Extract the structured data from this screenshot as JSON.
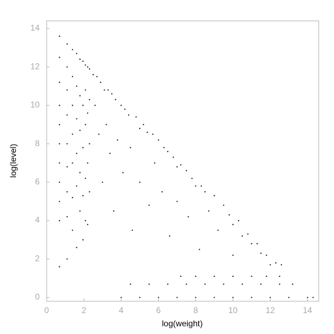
{
  "chart_data": {
    "type": "scatter",
    "x_label": "log(weight)",
    "y_label": "log(level)",
    "xlim": [
      0,
      14.6
    ],
    "ylim": [
      -0.2,
      14.4
    ],
    "xticks": [
      0,
      2,
      4,
      6,
      8,
      10,
      12,
      14
    ],
    "yticks": [
      0,
      2,
      4,
      6,
      8,
      10,
      12,
      14
    ],
    "grid": false,
    "color": "#000000",
    "x": [
      0.69,
      0.69,
      0.69,
      0.69,
      0.69,
      0.69,
      0.69,
      0.69,
      0.69,
      0.69,
      0.69,
      1.1,
      1.1,
      1.1,
      1.1,
      1.1,
      1.1,
      1.1,
      1.1,
      1.1,
      1.39,
      1.39,
      1.39,
      1.39,
      1.39,
      1.39,
      1.39,
      1.61,
      1.61,
      1.61,
      1.61,
      1.61,
      1.61,
      1.79,
      1.79,
      1.79,
      1.79,
      1.79,
      1.95,
      1.95,
      1.95,
      1.95,
      1.95,
      2.08,
      2.08,
      2.08,
      2.08,
      2.08,
      2.2,
      2.2,
      2.2,
      2.2,
      2.3,
      2.3,
      2.3,
      2.3,
      2.5,
      2.6,
      2.7,
      2.8,
      2.9,
      3,
      3.1,
      3.2,
      3.3,
      3.4,
      3.5,
      3.6,
      3.7,
      3.8,
      4,
      4.1,
      4.2,
      4.4,
      4.5,
      4.6,
      4.8,
      5,
      5,
      5.2,
      5.4,
      5.5,
      5.7,
      5.8,
      6,
      6.2,
      6.3,
      6.5,
      6.6,
      6.8,
      7,
      7,
      7.2,
      7.5,
      7.6,
      7.8,
      8,
      8.2,
      8.3,
      8.5,
      8.7,
      9,
      9.2,
      9.5,
      9.8,
      10,
      10,
      10.3,
      10.5,
      10.8,
      11,
      11.3,
      11.5,
      11.8,
      12,
      12.3,
      12.6,
      7.2,
      8,
      9,
      10,
      11,
      11.8,
      12.5,
      4.5,
      5.5,
      6.5,
      7.5,
      8.5,
      9.5,
      10.5,
      11.5,
      12.5,
      13.2,
      4,
      5,
      6,
      7,
      8,
      9,
      10,
      11,
      12,
      13,
      14,
      14.3
    ],
    "y": [
      13.6,
      12.5,
      11.2,
      10,
      9,
      8,
      7,
      6,
      5,
      4,
      1.6,
      13.2,
      12,
      10.8,
      9.5,
      8,
      6.8,
      5.5,
      4.2,
      2,
      12.9,
      11.5,
      10,
      8.5,
      7,
      5.2,
      3.5,
      12.7,
      11,
      9.3,
      7.5,
      5.8,
      2.6,
      12.4,
      10.5,
      8.7,
      6.5,
      4.5,
      12.3,
      10,
      7.8,
      5.3,
      3,
      12.1,
      10.8,
      9,
      6.2,
      4,
      12,
      9.6,
      7,
      3.8,
      11.9,
      10.3,
      8,
      5.5,
      11.6,
      10,
      11.5,
      8.5,
      11.2,
      6,
      10.8,
      9,
      10.8,
      7.5,
      10.6,
      4.5,
      10.3,
      8.2,
      10,
      6.5,
      9.8,
      9.5,
      7.8,
      3.5,
      9.4,
      8.8,
      6,
      9,
      8.6,
      4.8,
      8.5,
      7,
      8.2,
      5.5,
      7.8,
      7.6,
      3.2,
      7.3,
      6.8,
      5,
      6.9,
      6.6,
      4.2,
      6.2,
      5.8,
      2.5,
      5.8,
      5.5,
      4.5,
      5.3,
      3.5,
      4.8,
      4.3,
      3.8,
      2.2,
      4,
      3.2,
      3.3,
      2.8,
      2.8,
      2.3,
      2.2,
      1.7,
      1.8,
      1.7,
      1.1,
      1.1,
      1.1,
      1.1,
      1.1,
      1.1,
      1.1,
      0.69,
      0.69,
      0.69,
      0.69,
      0.69,
      0.69,
      0.69,
      0.69,
      0.69,
      0.69,
      0,
      0,
      0,
      0,
      0,
      0,
      0,
      0,
      0,
      0,
      0,
      0
    ]
  }
}
